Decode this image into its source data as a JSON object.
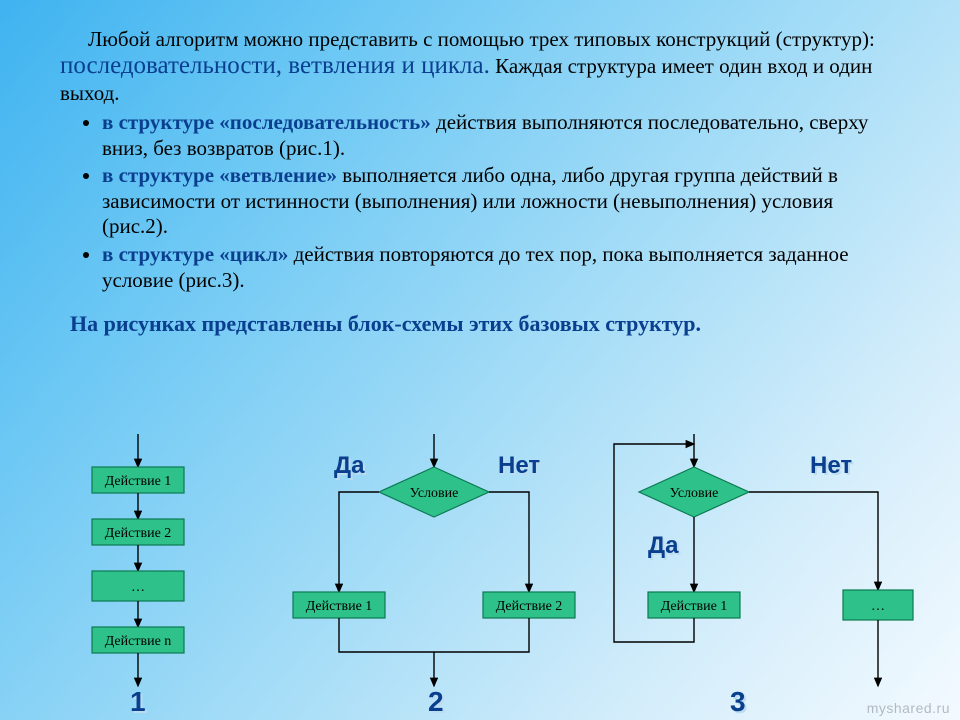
{
  "text": {
    "para_before": "Любой алгоритм можно представить с помощью трех типовых конструкций (структур): ",
    "para_highlight": "последовательности, ветвления и цикла.",
    "para_after": " Каждая структура имеет один вход и один выход.",
    "bullet1_lead": "в структуре «последовательность» ",
    "bullet1_rest": "действия выполняются последовательно, сверху вниз, без возвратов (рис.1).",
    "bullet2_lead": "в структуре «ветвление» ",
    "bullet2_rest": "выполняется либо одна, либо другая группа действий в зависимости от истинности (выполнения) или ложности (невыполнения) условия (рис.2).",
    "bullet3_lead": "в структуре «цикл» ",
    "bullet3_rest": "действия повторяются до тех пор, пока выполняется заданное условие (рис.3).",
    "caption": "На рисунках представлены блок-схемы этих базовых структур."
  },
  "labels": {
    "yes": "Да",
    "no": "Нет",
    "condition": "Условие",
    "action1": "Действие 1",
    "action2": "Действие 2",
    "actionN": "Действие n",
    "ellipsis": "…",
    "fig1": "1",
    "fig2": "2",
    "fig3": "3"
  },
  "style": {
    "node_fill": "#2fc18a",
    "node_stroke": "#0a7a52",
    "node_stroke_width": 1.2,
    "line_color": "#000000",
    "line_width": 1.4,
    "node_text_color": "#000000",
    "node_font_size": 14,
    "rect_w": 92,
    "rect_h": 26,
    "diamond_w": 110,
    "diamond_h": 50
  },
  "watermark": "myshared.ru"
}
